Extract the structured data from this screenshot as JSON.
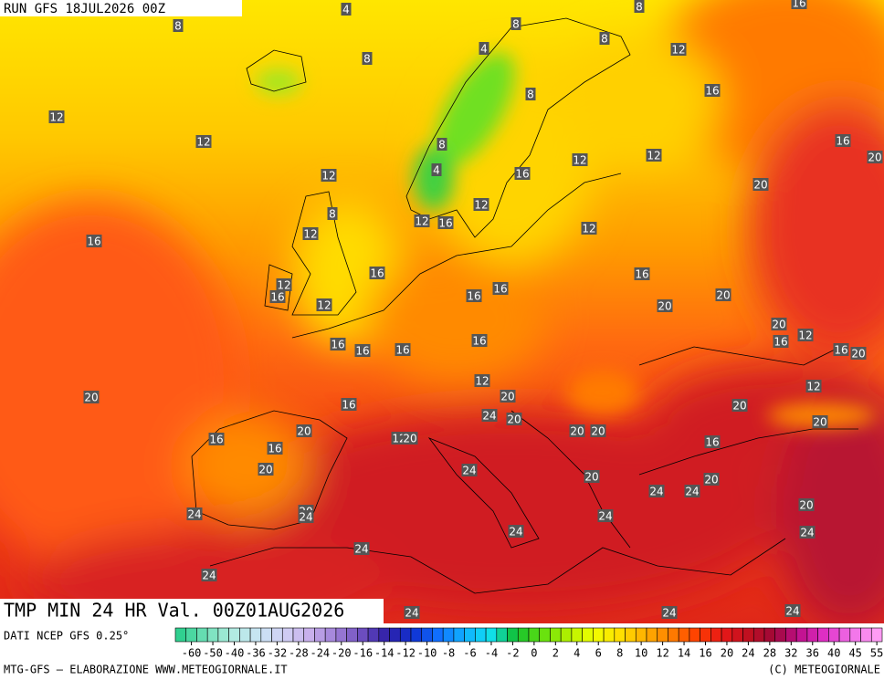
{
  "header": {
    "run": "RUN GFS 18JUL2026 00Z"
  },
  "footer": {
    "title": "TMP MIN 24 HR Val. 00Z01AUG2026",
    "source": "DATI NCEP GFS 0.25°",
    "credit": "MTG-GFS — ELABORAZIONE WWW.METEOGIORNALE.IT",
    "copyright": "(C) METEOGIORNALE"
  },
  "scale": {
    "labels": [
      -60,
      -50,
      -40,
      -36,
      -32,
      -28,
      -24,
      -20,
      -16,
      -14,
      -12,
      -10,
      -8,
      -6,
      -4,
      -2,
      0,
      2,
      4,
      6,
      8,
      10,
      12,
      14,
      16,
      20,
      24,
      28,
      32,
      36,
      40,
      45,
      55
    ]
  },
  "map": {
    "labels": [
      4,
      8,
      8,
      16,
      8,
      8,
      4,
      12,
      8,
      8,
      16,
      12,
      12,
      8,
      16,
      12,
      12,
      4,
      16,
      12,
      20,
      20,
      12,
      8,
      12,
      16,
      12,
      12,
      16,
      16,
      16,
      12,
      16,
      16,
      16,
      12,
      20,
      20,
      20,
      16,
      12,
      16,
      16,
      16,
      16,
      16,
      20,
      12,
      12,
      20,
      16,
      20,
      20,
      24,
      20,
      20,
      20,
      20,
      20,
      12,
      20,
      16,
      16,
      16,
      20,
      24,
      20,
      20,
      24,
      24,
      20,
      24,
      20,
      24,
      24,
      24,
      24,
      24,
      24,
      24,
      24,
      24
    ]
  }
}
